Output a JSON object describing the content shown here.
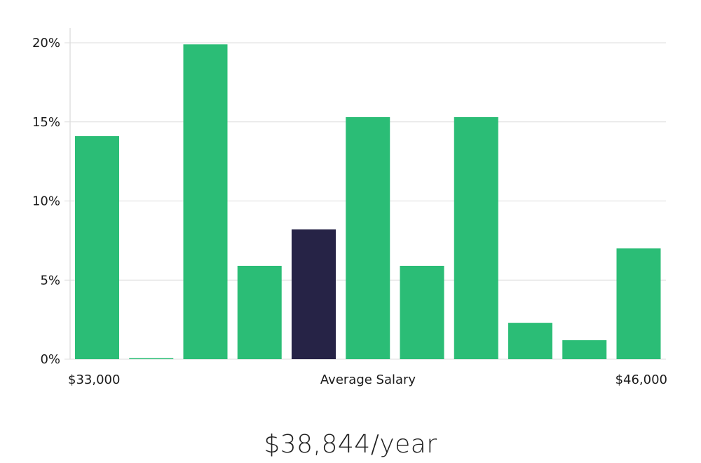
{
  "summary": {
    "average_salary": "$38,844/year"
  },
  "colors": {
    "bar": "#2bbd76",
    "highlight_bar": "#262346",
    "grid": "#dcdcdc",
    "text": "#1b1b1b"
  },
  "chart_data": {
    "type": "bar",
    "title": "",
    "xlabel": "Average Salary",
    "ylabel": "",
    "x_range_labels": [
      "$33,000",
      "$46,000"
    ],
    "y_tick_labels": [
      "0%",
      "5%",
      "10%",
      "15%",
      "20%"
    ],
    "y_ticks": [
      0,
      5,
      10,
      15,
      20
    ],
    "ylim": [
      0,
      21
    ],
    "grid": true,
    "legend": "none",
    "values": [
      14.1,
      0.05,
      19.9,
      5.9,
      8.2,
      15.3,
      5.9,
      15.3,
      2.3,
      1.2,
      7.0
    ],
    "highlight_index": 4
  }
}
